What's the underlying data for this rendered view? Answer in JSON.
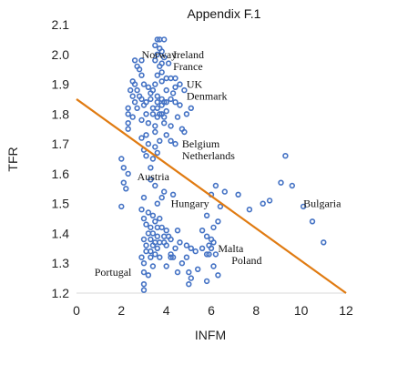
{
  "chart_data": {
    "type": "scatter",
    "title": "Appendix F.1",
    "xlabel": "INFM",
    "ylabel": "TFR",
    "xlim": [
      0,
      12
    ],
    "ylim": [
      1.2,
      2.1
    ],
    "xticks": [
      0,
      2,
      4,
      6,
      8,
      10,
      12
    ],
    "yticks": [
      1.2,
      1.3,
      1.4,
      1.5,
      1.6,
      1.7,
      1.8,
      1.9,
      2.0,
      2.1
    ],
    "grid": false,
    "marker_color": "#4472C4",
    "trend_color": "#E07B12",
    "trendline": {
      "x": [
        0,
        12
      ],
      "y": [
        1.85,
        1.2
      ]
    },
    "annotations": [
      {
        "text": "Norway",
        "x": 2.9,
        "y": 2.0
      },
      {
        "text": "Ireland",
        "x": 4.3,
        "y": 2.0
      },
      {
        "text": "France",
        "x": 4.3,
        "y": 1.96
      },
      {
        "text": "UK",
        "x": 4.9,
        "y": 1.9
      },
      {
        "text": "Denmark",
        "x": 4.9,
        "y": 1.86
      },
      {
        "text": "Belgium",
        "x": 4.7,
        "y": 1.7
      },
      {
        "text": "Netherlands",
        "x": 4.7,
        "y": 1.66
      },
      {
        "text": "Austria",
        "x": 2.7,
        "y": 1.59
      },
      {
        "text": "Hungary",
        "x": 4.2,
        "y": 1.5
      },
      {
        "text": "Bulgaria",
        "x": 10.1,
        "y": 1.5
      },
      {
        "text": "Malta",
        "x": 6.3,
        "y": 1.35
      },
      {
        "text": "Poland",
        "x": 6.9,
        "y": 1.31
      },
      {
        "text": "Portugal",
        "x": 0.8,
        "y": 1.27
      }
    ],
    "points": [
      [
        3.6,
        2.05
      ],
      [
        3.7,
        2.05
      ],
      [
        3.9,
        2.05
      ],
      [
        3.5,
        2.03
      ],
      [
        3.7,
        2.02
      ],
      [
        3.8,
        2.01
      ],
      [
        3.6,
        2.0
      ],
      [
        3.9,
        1.99
      ],
      [
        3.5,
        1.98
      ],
      [
        3.8,
        1.97
      ],
      [
        2.6,
        1.98
      ],
      [
        2.9,
        1.98
      ],
      [
        2.7,
        1.96
      ],
      [
        2.8,
        1.95
      ],
      [
        3.7,
        1.96
      ],
      [
        4.1,
        1.97
      ],
      [
        3.8,
        1.94
      ],
      [
        2.9,
        1.93
      ],
      [
        3.6,
        1.93
      ],
      [
        4.0,
        1.92
      ],
      [
        4.2,
        1.92
      ],
      [
        4.4,
        1.92
      ],
      [
        2.5,
        1.91
      ],
      [
        2.6,
        1.9
      ],
      [
        3.0,
        1.9
      ],
      [
        3.2,
        1.89
      ],
      [
        3.5,
        1.9
      ],
      [
        3.8,
        1.91
      ],
      [
        4.6,
        1.9
      ],
      [
        2.4,
        1.88
      ],
      [
        2.7,
        1.88
      ],
      [
        3.3,
        1.87
      ],
      [
        3.4,
        1.88
      ],
      [
        4.0,
        1.88
      ],
      [
        4.4,
        1.89
      ],
      [
        4.8,
        1.88
      ],
      [
        2.5,
        1.86
      ],
      [
        2.8,
        1.86
      ],
      [
        3.6,
        1.86
      ],
      [
        4.3,
        1.87
      ],
      [
        2.6,
        1.84
      ],
      [
        2.9,
        1.85
      ],
      [
        3.1,
        1.84
      ],
      [
        3.3,
        1.85
      ],
      [
        3.6,
        1.84
      ],
      [
        3.8,
        1.85
      ],
      [
        3.9,
        1.84
      ],
      [
        4.0,
        1.84
      ],
      [
        4.2,
        1.85
      ],
      [
        4.4,
        1.84
      ],
      [
        2.3,
        1.82
      ],
      [
        2.7,
        1.82
      ],
      [
        3.0,
        1.83
      ],
      [
        3.4,
        1.82
      ],
      [
        3.6,
        1.82
      ],
      [
        3.8,
        1.83
      ],
      [
        4.6,
        1.83
      ],
      [
        5.1,
        1.82
      ],
      [
        2.3,
        1.8
      ],
      [
        2.5,
        1.79
      ],
      [
        3.1,
        1.8
      ],
      [
        3.4,
        1.8
      ],
      [
        3.6,
        1.79
      ],
      [
        3.7,
        1.8
      ],
      [
        3.8,
        1.8
      ],
      [
        3.9,
        1.79
      ],
      [
        4.0,
        1.81
      ],
      [
        4.5,
        1.79
      ],
      [
        4.9,
        1.8
      ],
      [
        2.3,
        1.77
      ],
      [
        2.9,
        1.78
      ],
      [
        3.2,
        1.77
      ],
      [
        3.5,
        1.76
      ],
      [
        3.9,
        1.77
      ],
      [
        4.2,
        1.76
      ],
      [
        4.7,
        1.75
      ],
      [
        2.3,
        1.75
      ],
      [
        3.1,
        1.73
      ],
      [
        3.5,
        1.74
      ],
      [
        4.0,
        1.73
      ],
      [
        4.8,
        1.74
      ],
      [
        2.9,
        1.72
      ],
      [
        3.7,
        1.71
      ],
      [
        4.2,
        1.71
      ],
      [
        4.4,
        1.7
      ],
      [
        3.2,
        1.7
      ],
      [
        3.5,
        1.69
      ],
      [
        3.0,
        1.68
      ],
      [
        3.6,
        1.67
      ],
      [
        3.1,
        1.66
      ],
      [
        3.4,
        1.65
      ],
      [
        2.0,
        1.65
      ],
      [
        2.1,
        1.62
      ],
      [
        3.3,
        1.62
      ],
      [
        2.3,
        1.6
      ],
      [
        2.1,
        1.57
      ],
      [
        2.2,
        1.55
      ],
      [
        3.3,
        1.58
      ],
      [
        3.5,
        1.56
      ],
      [
        3.8,
        1.52
      ],
      [
        3.9,
        1.54
      ],
      [
        4.3,
        1.53
      ],
      [
        3.0,
        1.52
      ],
      [
        3.6,
        1.5
      ],
      [
        2.9,
        1.48
      ],
      [
        3.2,
        1.47
      ],
      [
        3.4,
        1.46
      ],
      [
        3.7,
        1.45
      ],
      [
        2.0,
        1.49
      ],
      [
        3.0,
        1.45
      ],
      [
        3.5,
        1.44
      ],
      [
        3.1,
        1.43
      ],
      [
        3.3,
        1.42
      ],
      [
        3.8,
        1.42
      ],
      [
        4.5,
        1.41
      ],
      [
        4.0,
        1.41
      ],
      [
        3.2,
        1.4
      ],
      [
        3.4,
        1.4
      ],
      [
        3.6,
        1.39
      ],
      [
        3.9,
        1.39
      ],
      [
        4.1,
        1.39
      ],
      [
        3.0,
        1.38
      ],
      [
        3.3,
        1.38
      ],
      [
        3.5,
        1.37
      ],
      [
        3.7,
        1.37
      ],
      [
        3.9,
        1.37
      ],
      [
        4.2,
        1.38
      ],
      [
        3.1,
        1.36
      ],
      [
        3.4,
        1.36
      ],
      [
        3.6,
        1.35
      ],
      [
        4.0,
        1.36
      ],
      [
        4.6,
        1.37
      ],
      [
        4.9,
        1.36
      ],
      [
        5.1,
        1.35
      ],
      [
        5.8,
        1.39
      ],
      [
        6.0,
        1.38
      ],
      [
        5.9,
        1.36
      ],
      [
        6.1,
        1.37
      ],
      [
        3.1,
        1.34
      ],
      [
        3.3,
        1.34
      ],
      [
        3.5,
        1.33
      ],
      [
        4.2,
        1.33
      ],
      [
        4.4,
        1.35
      ],
      [
        5.3,
        1.34
      ],
      [
        5.6,
        1.35
      ],
      [
        6.0,
        1.35
      ],
      [
        2.9,
        1.32
      ],
      [
        3.3,
        1.32
      ],
      [
        3.7,
        1.32
      ],
      [
        4.2,
        1.32
      ],
      [
        4.3,
        1.32
      ],
      [
        4.9,
        1.32
      ],
      [
        5.8,
        1.33
      ],
      [
        6.2,
        1.33
      ],
      [
        3.0,
        1.3
      ],
      [
        3.4,
        1.29
      ],
      [
        4.0,
        1.29
      ],
      [
        4.7,
        1.3
      ],
      [
        5.4,
        1.28
      ],
      [
        6.1,
        1.29
      ],
      [
        3.0,
        1.27
      ],
      [
        3.2,
        1.26
      ],
      [
        4.5,
        1.27
      ],
      [
        5.1,
        1.25
      ],
      [
        5.8,
        1.24
      ],
      [
        6.3,
        1.26
      ],
      [
        3.0,
        1.23
      ],
      [
        3.0,
        1.21
      ],
      [
        5.0,
        1.23
      ],
      [
        5.0,
        1.27
      ],
      [
        6.2,
        1.56
      ],
      [
        6.0,
        1.53
      ],
      [
        6.6,
        1.54
      ],
      [
        7.2,
        1.53
      ],
      [
        7.7,
        1.48
      ],
      [
        8.3,
        1.5
      ],
      [
        8.6,
        1.51
      ],
      [
        9.1,
        1.57
      ],
      [
        9.3,
        1.66
      ],
      [
        9.6,
        1.56
      ],
      [
        10.1,
        1.49
      ],
      [
        10.5,
        1.44
      ],
      [
        11.0,
        1.37
      ],
      [
        6.3,
        1.44
      ],
      [
        5.6,
        1.41
      ],
      [
        5.9,
        1.33
      ],
      [
        6.1,
        1.42
      ],
      [
        6.4,
        1.49
      ],
      [
        5.8,
        1.46
      ],
      [
        3.6,
        1.42
      ]
    ]
  }
}
